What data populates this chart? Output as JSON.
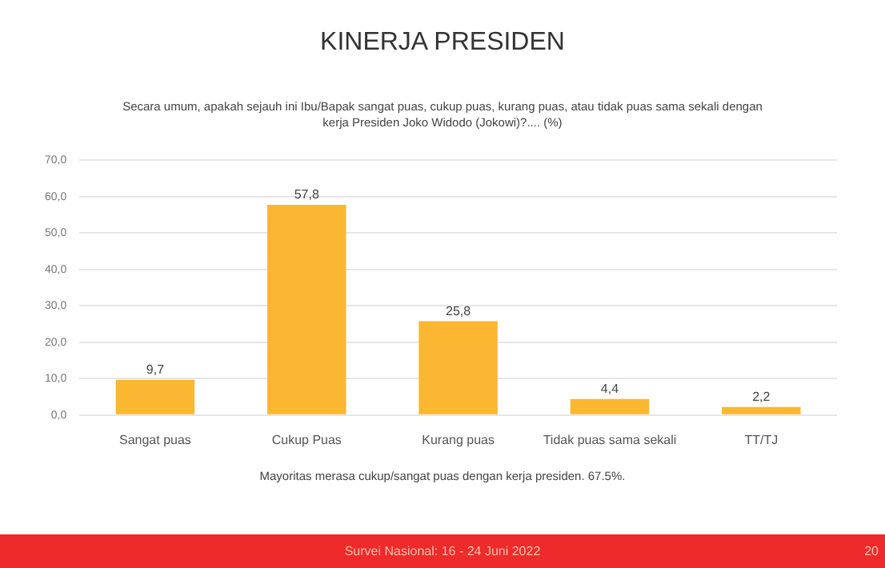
{
  "chart_data": {
    "type": "bar",
    "title": "KINERJA PRESIDEN",
    "subtitle": "Secara umum, apakah sejauh ini Ibu/Bapak sangat puas, cukup puas, kurang puas, atau tidak puas sama sekali dengan kerja Presiden Joko Widodo (Jokowi)?.... (%)",
    "categories": [
      "Sangat puas",
      "Cukup Puas",
      "Kurang puas",
      "Tidak puas sama sekali",
      "TT/TJ"
    ],
    "values": [
      9.7,
      57.8,
      25.8,
      4.4,
      2.2
    ],
    "value_labels": [
      "9,7",
      "57,8",
      "25,8",
      "4,4",
      "2,2"
    ],
    "color": "#fbb731",
    "ylim": [
      0,
      70
    ],
    "yticks": [
      {
        "value": 0,
        "label": "0,0"
      },
      {
        "value": 10,
        "label": "10,0"
      },
      {
        "value": 20,
        "label": "20,0"
      },
      {
        "value": 30,
        "label": "30,0"
      },
      {
        "value": 40,
        "label": "40,0"
      },
      {
        "value": 50,
        "label": "50,0"
      },
      {
        "value": 60,
        "label": "60,0"
      },
      {
        "value": 70,
        "label": "70,0"
      }
    ],
    "grid": "y",
    "legend": false,
    "annotations": [
      "Mayoritas merasa cukup/sangat puas dengan kerja presiden. 67.5%.",
      "Survei Nasional: 16 - 24 Juni 2022",
      "20"
    ]
  }
}
